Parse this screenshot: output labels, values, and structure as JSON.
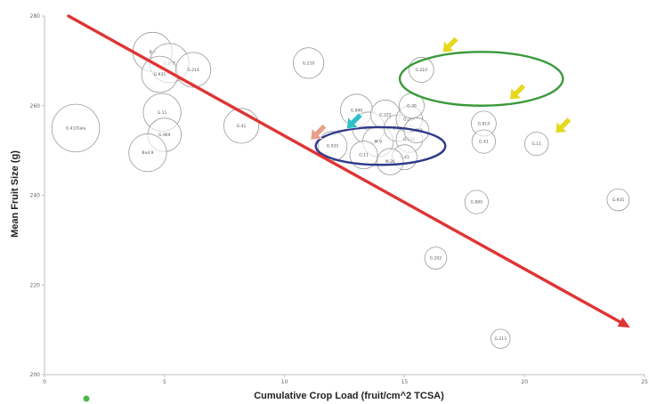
{
  "chart_data": {
    "type": "scatter",
    "subtype": "bubble",
    "title": "",
    "xlabel": "Cumulative Crop Load (fruit/cm^2 TCSA)",
    "ylabel": "Mean Fruit Size (g)",
    "xlim": [
      0,
      25
    ],
    "ylim": [
      200,
      280
    ],
    "xticks": [
      "0",
      "5",
      "10",
      "15",
      "20",
      "25"
    ],
    "yticks": [
      "200",
      "220",
      "240",
      "260",
      "280"
    ],
    "grid": false,
    "legend": "none",
    "series": [
      {
        "points": [
          {
            "x": 1.3,
            "y": 255.0,
            "size": 1.3,
            "label": "G.41/Gala"
          },
          {
            "x": 4.5,
            "y": 272.0,
            "size": 1.0,
            "label": "B.9"
          },
          {
            "x": 5.2,
            "y": 269.5,
            "size": 1.0,
            "label": "G.202"
          },
          {
            "x": 4.8,
            "y": 267.0,
            "size": 0.9,
            "label": "G.935"
          },
          {
            "x": 6.2,
            "y": 268.0,
            "size": 0.85,
            "label": "G.214"
          },
          {
            "x": 4.9,
            "y": 258.5,
            "size": 0.95,
            "label": "G.11"
          },
          {
            "x": 5.0,
            "y": 253.5,
            "size": 0.8,
            "label": "G.969"
          },
          {
            "x": 4.3,
            "y": 249.5,
            "size": 0.95,
            "label": "Bud.9"
          },
          {
            "x": 8.2,
            "y": 255.5,
            "size": 0.85,
            "label": "G.41"
          },
          {
            "x": 11.0,
            "y": 269.5,
            "size": 0.7,
            "label": "G.210"
          },
          {
            "x": 13.0,
            "y": 259.0,
            "size": 0.75,
            "label": "G.890"
          },
          {
            "x": 13.5,
            "y": 255.0,
            "size": 0.75,
            "label": "G.30"
          },
          {
            "x": 14.2,
            "y": 258.0,
            "size": 0.65,
            "label": "G.222"
          },
          {
            "x": 13.9,
            "y": 252.0,
            "size": 0.7,
            "label": "M.9"
          },
          {
            "x": 14.7,
            "y": 255.0,
            "size": 0.55,
            "label": "G.16"
          },
          {
            "x": 15.2,
            "y": 252.5,
            "size": 0.55,
            "label": "G.202"
          },
          {
            "x": 15.0,
            "y": 248.5,
            "size": 0.5,
            "label": "G.41"
          },
          {
            "x": 14.4,
            "y": 247.5,
            "size": 0.55,
            "label": "M.26"
          },
          {
            "x": 13.3,
            "y": 249.0,
            "size": 0.6,
            "label": "G.11"
          },
          {
            "x": 12.0,
            "y": 251.0,
            "size": 0.65,
            "label": "G.935"
          },
          {
            "x": 15.2,
            "y": 257.0,
            "size": 0.55,
            "label": "G.214"
          },
          {
            "x": 15.5,
            "y": 254.5,
            "size": 0.5,
            "label": "G.969"
          },
          {
            "x": 15.3,
            "y": 260.0,
            "size": 0.5,
            "label": "G.30"
          },
          {
            "x": 15.7,
            "y": 268.0,
            "size": 0.5,
            "label": "G.210"
          },
          {
            "x": 18.3,
            "y": 256.0,
            "size": 0.5,
            "label": "G.814"
          },
          {
            "x": 18.3,
            "y": 252.0,
            "size": 0.45,
            "label": "G.41"
          },
          {
            "x": 20.5,
            "y": 251.5,
            "size": 0.45,
            "label": "G.11"
          },
          {
            "x": 18.0,
            "y": 238.5,
            "size": 0.45,
            "label": "G.890"
          },
          {
            "x": 23.9,
            "y": 239.0,
            "size": 0.4,
            "label": "G.935"
          },
          {
            "x": 16.3,
            "y": 226.0,
            "size": 0.4,
            "label": "G.202"
          },
          {
            "x": 19.0,
            "y": 208.0,
            "size": 0.3,
            "label": "G.213"
          }
        ]
      }
    ],
    "trendline": {
      "color": "#e03434",
      "x": [
        1.0,
        24.4
      ],
      "y": [
        280.0,
        210.5
      ]
    },
    "annotations": {
      "ellipses": [
        {
          "color": "#3a9a3a",
          "cx": 18.2,
          "cy": 266.0,
          "rx": 3.4,
          "ry": 6.0
        },
        {
          "color": "#2e3a8a",
          "cx": 14.0,
          "cy": 251.0,
          "rx": 2.7,
          "ry": 4.2
        }
      ],
      "arrows": [
        {
          "color": "#e6d81e",
          "x": 16.8,
          "y": 273.0
        },
        {
          "color": "#e6d81e",
          "x": 19.6,
          "y": 262.5
        },
        {
          "color": "#e6d81e",
          "x": 21.5,
          "y": 255.0
        },
        {
          "color": "#2ec0c8",
          "x": 12.8,
          "y": 256.0
        },
        {
          "color": "#e8a08a",
          "x": 11.3,
          "y": 253.5
        }
      ]
    },
    "marker": {
      "color": "#4bb84b"
    }
  }
}
